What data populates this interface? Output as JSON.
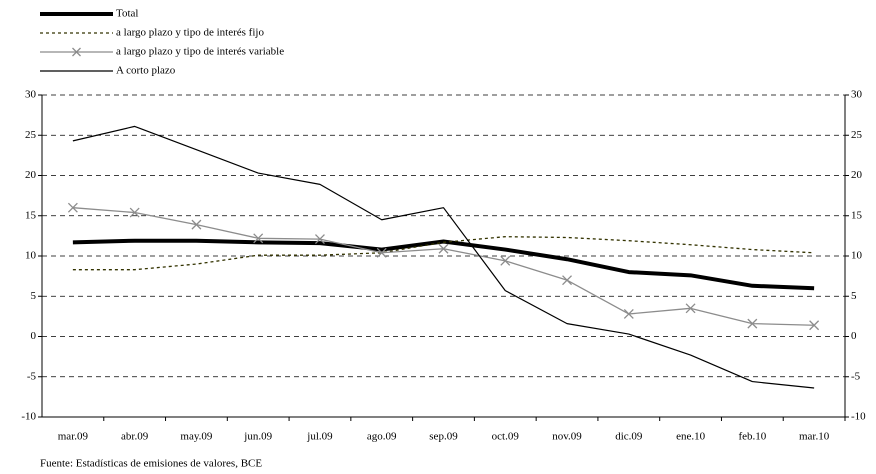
{
  "chart_data": {
    "type": "line",
    "source": "Fuente: Estadísticas de emisiones de valores, BCE",
    "categories": [
      "mar.09",
      "abr.09",
      "may.09",
      "jun.09",
      "jul.09",
      "ago.09",
      "sep.09",
      "oct.09",
      "nov.09",
      "dic.09",
      "ene.10",
      "feb.10",
      "mar.10"
    ],
    "series": [
      {
        "name": "Total",
        "color": "#000000",
        "values": [
          11.7,
          11.9,
          11.9,
          11.7,
          11.6,
          10.8,
          11.8,
          10.8,
          9.6,
          8.0,
          7.6,
          6.3,
          6.0
        ]
      },
      {
        "name": "a largo plazo y tipo de interés fijo",
        "color": "#333300",
        "dash": "dotted",
        "values": [
          8.3,
          8.3,
          9.0,
          10.1,
          10.1,
          10.4,
          11.7,
          12.4,
          12.3,
          11.9,
          11.4,
          10.8,
          10.4
        ]
      },
      {
        "name": "a largo plazo y tipo de interés variable",
        "color": "#8c8c8c",
        "marker": "x",
        "values": [
          16.0,
          15.4,
          13.9,
          12.2,
          12.1,
          10.4,
          10.9,
          9.4,
          7.0,
          2.8,
          3.5,
          1.6,
          1.4
        ]
      },
      {
        "name": "A corto plazo",
        "color": "#000000",
        "values": [
          24.3,
          26.1,
          23.2,
          20.3,
          18.9,
          14.5,
          16.0,
          5.7,
          1.6,
          0.3,
          -2.3,
          -5.6,
          -6.4
        ]
      }
    ],
    "ylim": [
      -10,
      30
    ],
    "yticks": [
      -10,
      -5,
      0,
      5,
      10,
      15,
      20,
      25,
      30
    ],
    "y2lim": [
      -10,
      30
    ],
    "y2ticks": [
      -10,
      -5,
      0,
      5,
      10,
      15,
      20,
      25,
      30
    ],
    "grid": true
  }
}
